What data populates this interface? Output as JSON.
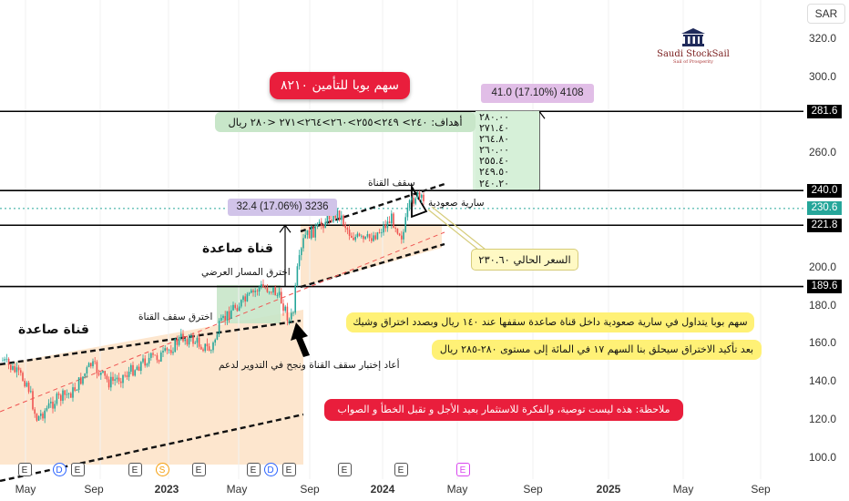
{
  "currency_label": "SAR",
  "logo": {
    "name": "Saudi StockSail",
    "tagline": "Sail of Prosperity"
  },
  "title": "سهم بوبا للتأمين ٨٢١٠",
  "targets_text": "أهداف: ٢٤٠> ٢٤٩>٢٥٥>٢٦٠>٢٦٤>٢٧١ <٢٨٠ ريال",
  "target_list": [
    "٢٨٠.٠٠",
    "٢٧١.٤٠",
    "٢٦٤.٨٠",
    "٢٦٠.٠٠",
    "٢٥٥.٤٠",
    "٢٤٩.٥٠",
    "٢٤٠.٢٠"
  ],
  "measure_upper": "41.0 (17.10%) 4108",
  "measure_lower": "32.4 (17.06%) 3236",
  "labels": {
    "channel_top": "سقف القناة",
    "ascending_mast": "سارية صعودية",
    "ascending_channel_1": "قناة صاعدة",
    "ascending_channel_2": "قناة صاعدة",
    "broke_sideways": "اخترق المسار العرضي",
    "broke_channel_top": "اخترق سقف القناة",
    "retest": "أعاد إختبار سقف القناة ونجح في التدوير لدعم"
  },
  "current_price_note": "السعر الحالي ٢٣٠.٦٠",
  "notes": [
    "سهم بوبا يتداول في سارية صعودية داخل قناة صاعدة سقفها عند ١٤٠ ريال  وبصدد اختراق وشيك",
    "بعد تأكيد الاختراق سيحلق بنا السهم ١٧ في المائة إلى مستوى ٢٨٠-٢٨٥ ريال",
    "ملاحظة: هذه ليست توصية، والفكرة للاستثمار بعيد الأجل و تقبل  الخطأ و الصواب"
  ],
  "colors": {
    "up": "#26a69a",
    "down": "#ef5350",
    "title_pill": "#e91e3c",
    "note_yellow": "#fff176",
    "note_green": "#c8e6c9",
    "measure_purple": "#e1bee7",
    "channel_fill": "#fde0c2",
    "breakout_fill": "#c8e6c9"
  },
  "chart_data": {
    "type": "candlestick",
    "y_axis": {
      "ticks": [
        "320.0",
        "300.0",
        "280.0",
        "260.0",
        "240.0",
        "220.0",
        "200.0",
        "180.0",
        "160.0",
        "140.0",
        "120.0",
        "100.0"
      ],
      "range": [
        95,
        327
      ]
    },
    "x_axis": {
      "ticks": [
        "May",
        "Sep",
        "2023",
        "May",
        "Sep",
        "2024",
        "May",
        "Sep",
        "2025",
        "May",
        "Sep"
      ]
    },
    "horizontal_levels": [
      {
        "value": 281.6,
        "label": "281.6"
      },
      {
        "value": 240.0,
        "label": "240.0"
      },
      {
        "value": 221.8,
        "label": "221.8"
      },
      {
        "value": 189.6,
        "label": "189.6"
      }
    ],
    "current_price": {
      "value": 230.6,
      "label": "230.6"
    },
    "events": [
      "E",
      "D",
      "E",
      "E",
      "S",
      "E",
      "E",
      "D",
      "E",
      "E",
      "E",
      "E"
    ],
    "price_path": [
      {
        "date": "2022-04",
        "close": 128
      },
      {
        "date": "2022-06",
        "close": 124
      },
      {
        "date": "2022-08",
        "close": 131
      },
      {
        "date": "2022-10",
        "close": 133
      },
      {
        "date": "2022-12",
        "close": 141
      },
      {
        "date": "2023-02",
        "close": 158
      },
      {
        "date": "2023-04",
        "close": 165
      },
      {
        "date": "2023-06",
        "close": 178
      },
      {
        "date": "2023-08",
        "close": 182
      },
      {
        "date": "2023-09",
        "close": 176
      },
      {
        "date": "2023-11",
        "close": 212
      },
      {
        "date": "2024-01",
        "close": 218
      },
      {
        "date": "2024-03",
        "close": 230.6
      }
    ]
  }
}
